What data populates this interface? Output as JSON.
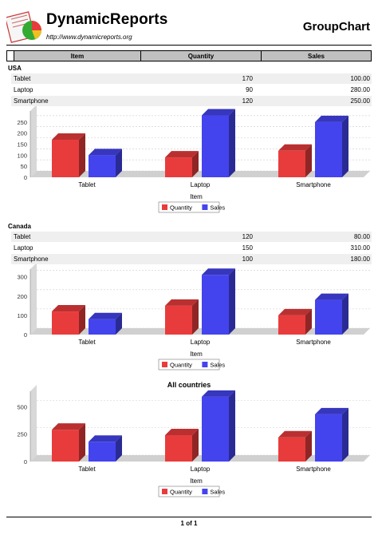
{
  "header": {
    "brand": "DynamicReports",
    "url": "http://www.dynamicreports.org",
    "report_title": "GroupChart"
  },
  "columns": {
    "item": "Item",
    "quantity": "Quantity",
    "sales": "Sales"
  },
  "groups": [
    {
      "name": "USA",
      "rows": [
        {
          "item": "Tablet",
          "quantity": "170",
          "sales": "100.00"
        },
        {
          "item": "Laptop",
          "quantity": "90",
          "sales": "280.00"
        },
        {
          "item": "Smartphone",
          "quantity": "120",
          "sales": "250.00"
        }
      ]
    },
    {
      "name": "Canada",
      "rows": [
        {
          "item": "Tablet",
          "quantity": "120",
          "sales": "80.00"
        },
        {
          "item": "Laptop",
          "quantity": "150",
          "sales": "310.00"
        },
        {
          "item": "Smartphone",
          "quantity": "100",
          "sales": "180.00"
        }
      ]
    }
  ],
  "chart_data": [
    {
      "type": "bar",
      "title": "",
      "categories": [
        "Tablet",
        "Laptop",
        "Smartphone"
      ],
      "xlabel": "Item",
      "ylabel": "",
      "yticks": [
        0,
        50,
        100,
        150,
        200,
        250
      ],
      "ylim": [
        0,
        300
      ],
      "grid": true,
      "legend": "bottom",
      "series": [
        {
          "name": "Quantity",
          "color": "#e83c3c",
          "values": [
            170,
            90,
            120
          ]
        },
        {
          "name": "Sales",
          "color": "#4444ee",
          "values": [
            100,
            280,
            250
          ]
        }
      ]
    },
    {
      "type": "bar",
      "title": "",
      "categories": [
        "Tablet",
        "Laptop",
        "Smartphone"
      ],
      "xlabel": "Item",
      "ylabel": "",
      "yticks": [
        0,
        100,
        200,
        300
      ],
      "ylim": [
        0,
        340
      ],
      "grid": true,
      "legend": "bottom",
      "series": [
        {
          "name": "Quantity",
          "color": "#e83c3c",
          "values": [
            120,
            150,
            100
          ]
        },
        {
          "name": "Sales",
          "color": "#4444ee",
          "values": [
            80,
            310,
            180
          ]
        }
      ]
    },
    {
      "type": "bar",
      "title": "All countries",
      "categories": [
        "Tablet",
        "Laptop",
        "Smartphone"
      ],
      "xlabel": "Item",
      "ylabel": "",
      "yticks": [
        0,
        250,
        500
      ],
      "ylim": [
        0,
        640
      ],
      "grid": true,
      "legend": "bottom",
      "series": [
        {
          "name": "Quantity",
          "color": "#e83c3c",
          "values": [
            290,
            240,
            220
          ]
        },
        {
          "name": "Sales",
          "color": "#4444ee",
          "values": [
            180,
            590,
            430
          ]
        }
      ]
    }
  ],
  "footer": {
    "page": "1 of 1"
  }
}
